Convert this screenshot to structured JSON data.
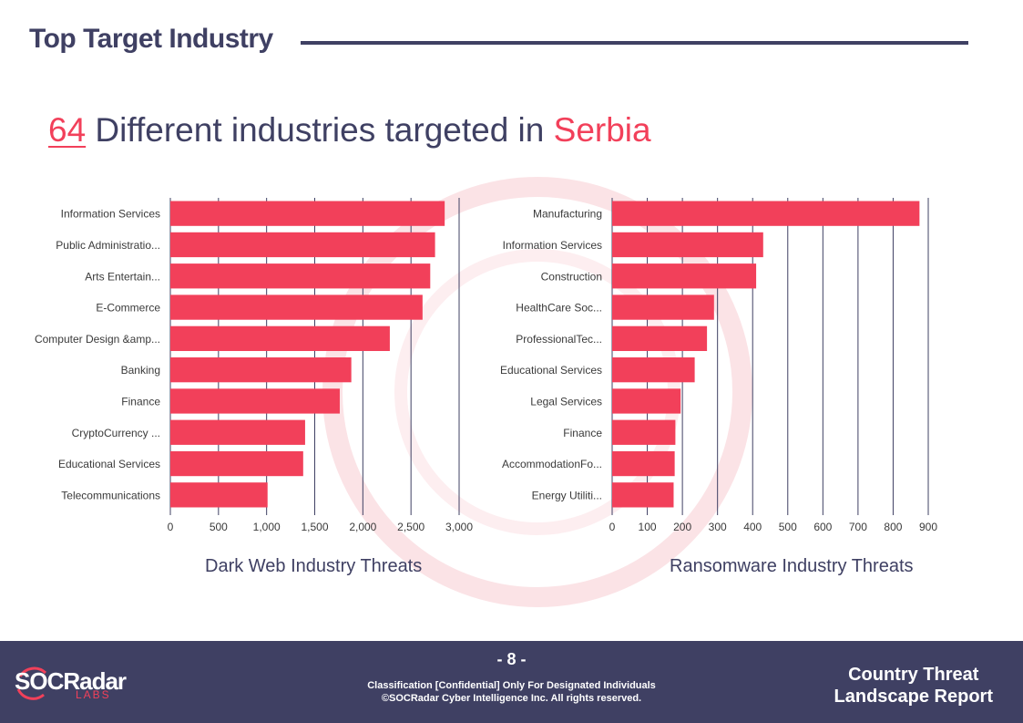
{
  "page": {
    "title": "Top Target Industry",
    "headline_number": "64",
    "headline_text": " Different industries targeted in ",
    "headline_country": "Serbia"
  },
  "colors": {
    "accent": "#f2405a",
    "navy": "#3f4063"
  },
  "chart_data": [
    {
      "type": "bar",
      "orientation": "horizontal",
      "subtitle": "Dark Web Industry Threats",
      "categories": [
        "Information Services",
        "Public Administratio...",
        "Arts  Entertain...",
        "E-Commerce",
        "Computer Design &amp...",
        "Banking",
        "Finance",
        "CryptoCurrency ...",
        "Educational Services",
        "Telecommunications"
      ],
      "values": [
        2850,
        2750,
        2700,
        2620,
        2280,
        1880,
        1760,
        1400,
        1380,
        1010
      ],
      "xlim": [
        0,
        3000
      ],
      "xticks": [
        0,
        500,
        1000,
        1500,
        2000,
        2500,
        3000
      ],
      "xtick_labels": [
        "0",
        "500",
        "1,000",
        "1,500",
        "2,000",
        "2,500",
        "3,000"
      ],
      "grid": true
    },
    {
      "type": "bar",
      "orientation": "horizontal",
      "subtitle": "Ransomware Industry Threats",
      "categories": [
        "Manufacturing",
        "Information Services",
        "Construction",
        "HealthCare  Soc...",
        "ProfessionalTec...",
        "Educational Services",
        "Legal Services",
        "Finance",
        "AccommodationFo...",
        "Energy  Utiliti..."
      ],
      "values": [
        875,
        430,
        410,
        290,
        270,
        235,
        195,
        180,
        178,
        175
      ],
      "xlim": [
        0,
        900
      ],
      "xticks": [
        0,
        100,
        200,
        300,
        400,
        500,
        600,
        700,
        800,
        900
      ],
      "xtick_labels": [
        "0",
        "100",
        "200",
        "300",
        "400",
        "500",
        "600",
        "700",
        "800",
        "900"
      ],
      "grid": true
    }
  ],
  "footer": {
    "logo_text": "SOCRadar",
    "logo_sub": "LABS",
    "page_number": "- 8 -",
    "classification_line1": "Classification [Confidential] Only For Designated Individuals",
    "classification_line2": "©SOCRadar Cyber Intelligence Inc. All rights reserved.",
    "report_title_line1": "Country Threat",
    "report_title_line2": "Landscape Report"
  }
}
